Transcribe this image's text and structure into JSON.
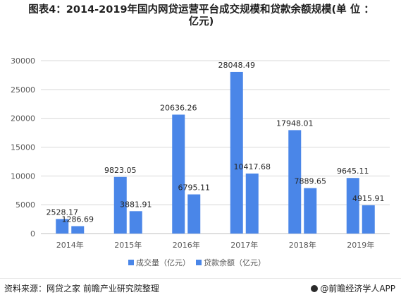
{
  "title_line1": "图表4：2014-2019年国内网贷运营平台成交规模和贷款余额规模(单 位 ：",
  "title_line2": "亿元)",
  "source": "资料来源：网贷之家 前瞻产业研究院整理",
  "brand": "@前瞻经济学人APP",
  "colors": {
    "series1": "#4a86e8",
    "series2": "#4a86e8",
    "grid": "#d9d9d9",
    "axis": "#bfbfbf",
    "text": "#595959"
  },
  "chart_data": {
    "type": "bar",
    "categories": [
      "2014年",
      "2015年",
      "2016年",
      "2017年",
      "2018年",
      "2019年"
    ],
    "series": [
      {
        "name": "成交量（亿元）",
        "values": [
          2528.17,
          9823.05,
          20636.26,
          28048.49,
          17948.01,
          9645.11
        ]
      },
      {
        "name": "贷款余额（亿元）",
        "values": [
          1286.69,
          3881.91,
          6795.11,
          10417.68,
          7889.65,
          4915.91
        ]
      }
    ],
    "data_labels": [
      [
        "2528.17",
        "9823.05",
        "20636.26",
        "28048.49",
        "17948.01",
        "9645.11"
      ],
      [
        "1286.69",
        "3881.91",
        "6795.11",
        "10417.68",
        "7889.65",
        "4915.91"
      ]
    ],
    "yticks": [
      "0",
      "5000",
      "10000",
      "15000",
      "20000",
      "25000",
      "30000"
    ],
    "ylim": [
      0,
      30000
    ],
    "grid": true,
    "legend_position": "bottom"
  }
}
